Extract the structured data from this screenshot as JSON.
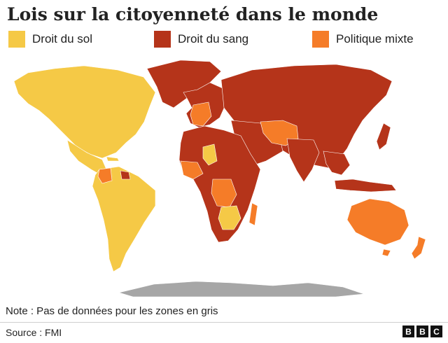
{
  "title": "Lois sur la citoyenneté dans le monde",
  "legend": [
    {
      "label": "Droit du sol",
      "color": "#f5c946"
    },
    {
      "label": "Droit du sang",
      "color": "#b5341a"
    },
    {
      "label": "Politique mixte",
      "color": "#f57c28"
    }
  ],
  "no_data_color": "#a6a6a6",
  "note": "Note : Pas de données pour les zones en gris",
  "source": "Source : FMI",
  "logo": [
    "B",
    "B",
    "C"
  ],
  "regions": [
    {
      "name": "North America",
      "category": "Droit du sol"
    },
    {
      "name": "Central & South America",
      "category": "Droit du sol"
    },
    {
      "name": "Greenland",
      "category": "Droit du sang"
    },
    {
      "name": "Europe",
      "category": "Droit du sang"
    },
    {
      "name": "Russia & North Asia",
      "category": "Droit du sang"
    },
    {
      "name": "China & East Asia",
      "category": "Droit du sang"
    },
    {
      "name": "Middle East",
      "category": "Droit du sang"
    },
    {
      "name": "Central Asia (Iran, Afghanistan)",
      "category": "Politique mixte"
    },
    {
      "name": "Africa (majority)",
      "category": "Droit du sang"
    },
    {
      "name": "Australia & New Zealand",
      "category": "Politique mixte"
    },
    {
      "name": "Antarctica",
      "category": "no data"
    }
  ]
}
